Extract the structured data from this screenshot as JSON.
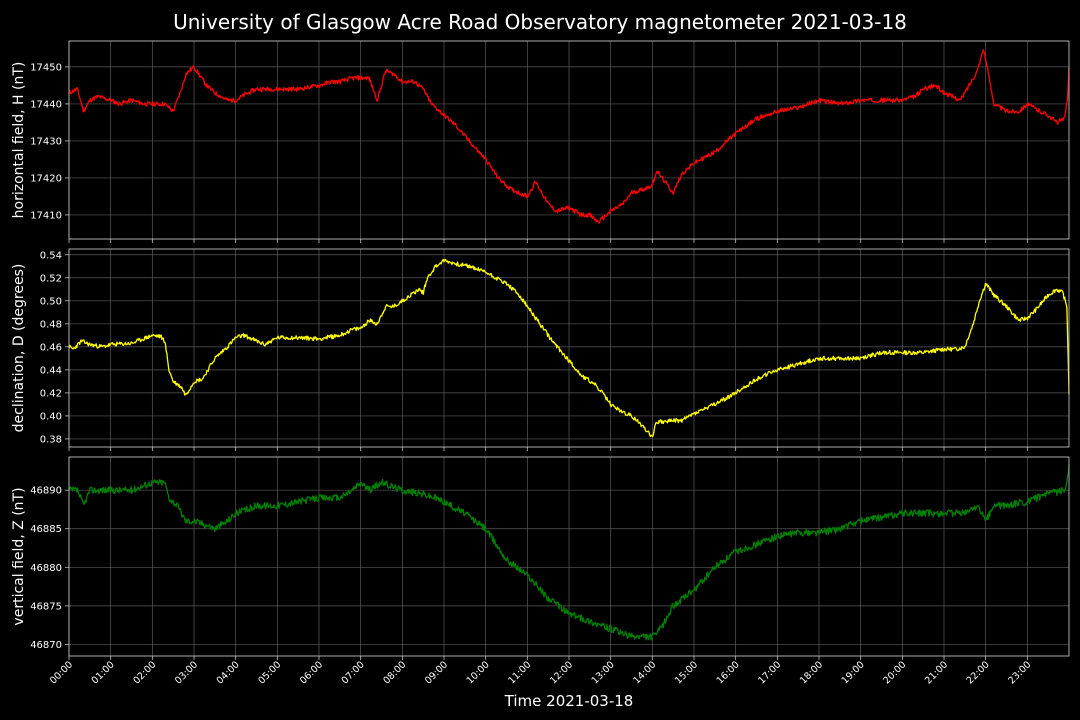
{
  "title": "University of Glasgow Acre Road Observatory magnetometer 2021-03-18",
  "xlabel": "Time 2021-03-18",
  "x_ticks": [
    "00:00",
    "01:00",
    "02:00",
    "03:00",
    "04:00",
    "05:00",
    "06:00",
    "07:00",
    "08:00",
    "09:00",
    "10:00",
    "11:00",
    "12:00",
    "13:00",
    "14:00",
    "15:00",
    "16:00",
    "17:00",
    "18:00",
    "19:00",
    "20:00",
    "21:00",
    "22:00",
    "23:00"
  ],
  "colors": {
    "background": "#000000",
    "grid": "#5a5a5a",
    "axis": "#bfbfbf",
    "text": "#ffffff"
  },
  "chart_data": [
    {
      "type": "line",
      "ylabel": "horizontal field, H (nT)",
      "color": "#ff0000",
      "xlim": [
        0,
        24
      ],
      "ylim": [
        17403.5,
        17457
      ],
      "yticks": [
        17410,
        17420,
        17430,
        17440,
        17450
      ],
      "noise": 0.6,
      "x": [
        0,
        0.2,
        0.35,
        0.5,
        0.7,
        1,
        1.2,
        1.5,
        1.8,
        2,
        2.3,
        2.5,
        2.7,
        2.8,
        3,
        3.3,
        3.5,
        3.8,
        4,
        4.3,
        4.5,
        5,
        5.5,
        6,
        6.3,
        6.5,
        6.8,
        7,
        7.2,
        7.4,
        7.6,
        7.8,
        8,
        8.3,
        8.5,
        8.7,
        9,
        9.3,
        9.6,
        10,
        10.3,
        10.6,
        11,
        11.2,
        11.5,
        11.7,
        12,
        12.3,
        12.5,
        12.7,
        13,
        13.3,
        13.5,
        13.8,
        14,
        14.1,
        14.3,
        14.5,
        14.7,
        15,
        15.5,
        16,
        16.5,
        17,
        17.5,
        18,
        18.5,
        19,
        19.5,
        20,
        20.3,
        20.5,
        20.8,
        21,
        21.2,
        21.4,
        21.6,
        21.8,
        21.95,
        22,
        22.2,
        22.5,
        22.8,
        23,
        23.3,
        23.5,
        23.7,
        23.9,
        23.97,
        24
      ],
      "y": [
        17443,
        17444,
        17438,
        17441,
        17442,
        17441,
        17440,
        17441,
        17440,
        17440,
        17440,
        17438,
        17444,
        17448,
        17450,
        17445,
        17443,
        17441,
        17441,
        17443,
        17444,
        17444,
        17444,
        17445,
        17446,
        17446,
        17447,
        17447,
        17447,
        17441,
        17449,
        17448,
        17446,
        17446,
        17444,
        17440,
        17437,
        17434,
        17430,
        17425,
        17420,
        17417,
        17415,
        17419,
        17413,
        17411,
        17412,
        17410,
        17410,
        17408,
        17411,
        17413,
        17416,
        17417,
        17418,
        17422,
        17419,
        17416,
        17421,
        17424,
        17427,
        17432,
        17436,
        17438,
        17439,
        17441,
        17440,
        17441,
        17441,
        17441,
        17442,
        17444,
        17445,
        17443,
        17442,
        17441,
        17445,
        17449,
        17455,
        17452,
        17440,
        17438,
        17438,
        17440,
        17438,
        17437,
        17435,
        17436,
        17442,
        17450
      ]
    },
    {
      "type": "line",
      "ylabel": "declination, D (degrees)",
      "color": "#ffff00",
      "xlim": [
        0,
        24
      ],
      "ylim": [
        0.373,
        0.545
      ],
      "yticks": [
        0.38,
        0.4,
        0.42,
        0.44,
        0.46,
        0.48,
        0.5,
        0.52,
        0.54
      ],
      "noise": 0.0018,
      "x": [
        0,
        0.1,
        0.3,
        0.5,
        0.8,
        1,
        1.5,
        2,
        2.2,
        2.3,
        2.4,
        2.5,
        2.7,
        2.8,
        3,
        3.2,
        3.5,
        3.8,
        4,
        4.2,
        4.5,
        4.7,
        5,
        5.5,
        6,
        6.5,
        6.8,
        7,
        7.2,
        7.4,
        7.6,
        7.8,
        8,
        8.2,
        8.4,
        8.5,
        8.6,
        8.8,
        9,
        9.3,
        9.6,
        10,
        10.5,
        10.8,
        11,
        11.3,
        11.6,
        12,
        12.3,
        12.6,
        12.8,
        13,
        13.3,
        13.5,
        13.8,
        14,
        14.1,
        14.3,
        14.5,
        14.7,
        15,
        15.5,
        16,
        16.5,
        17,
        17.5,
        18,
        18.5,
        19,
        19.5,
        20,
        20.5,
        21,
        21.3,
        21.5,
        21.7,
        21.85,
        22,
        22.2,
        22.5,
        22.8,
        23,
        23.2,
        23.5,
        23.7,
        23.85,
        23.95,
        24
      ],
      "y": [
        0.46,
        0.458,
        0.465,
        0.462,
        0.46,
        0.462,
        0.463,
        0.47,
        0.469,
        0.465,
        0.44,
        0.43,
        0.425,
        0.418,
        0.43,
        0.432,
        0.45,
        0.46,
        0.468,
        0.47,
        0.465,
        0.462,
        0.468,
        0.468,
        0.467,
        0.47,
        0.475,
        0.476,
        0.483,
        0.48,
        0.495,
        0.495,
        0.5,
        0.505,
        0.51,
        0.507,
        0.52,
        0.53,
        0.535,
        0.532,
        0.53,
        0.525,
        0.515,
        0.505,
        0.495,
        0.48,
        0.465,
        0.448,
        0.435,
        0.428,
        0.42,
        0.41,
        0.403,
        0.4,
        0.39,
        0.382,
        0.395,
        0.395,
        0.396,
        0.396,
        0.402,
        0.41,
        0.42,
        0.432,
        0.44,
        0.445,
        0.45,
        0.45,
        0.45,
        0.455,
        0.455,
        0.455,
        0.458,
        0.458,
        0.46,
        0.48,
        0.5,
        0.515,
        0.505,
        0.495,
        0.483,
        0.485,
        0.492,
        0.505,
        0.51,
        0.507,
        0.495,
        0.42
      ]
    },
    {
      "type": "line",
      "ylabel": "vertical field, Z (nT)",
      "color": "#008000",
      "xlim": [
        0,
        24
      ],
      "ylim": [
        46868.5,
        46894.3
      ],
      "yticks": [
        46870,
        46875,
        46880,
        46885,
        46890
      ],
      "noise": 0.45,
      "x": [
        0,
        0.2,
        0.35,
        0.5,
        0.8,
        1,
        1.2,
        1.5,
        2,
        2.3,
        2.4,
        2.6,
        2.8,
        3,
        3.3,
        3.5,
        3.8,
        4,
        4.3,
        4.5,
        5,
        5.5,
        6,
        6.5,
        6.8,
        7,
        7.2,
        7.5,
        8,
        8.5,
        8.8,
        9,
        9.5,
        10,
        10.5,
        11,
        11.5,
        12,
        12.5,
        13,
        13.5,
        13.8,
        14,
        14.2,
        14.5,
        15,
        15.5,
        16,
        16.5,
        17,
        17.5,
        18,
        18.5,
        19,
        19.5,
        20,
        20.5,
        21,
        21.5,
        21.8,
        22,
        22.2,
        22.5,
        23,
        23.5,
        23.9,
        24
      ],
      "y": [
        46890,
        46890,
        46888,
        46890,
        46890,
        46890,
        46890,
        46890,
        46891,
        46891,
        46889,
        46888,
        46886,
        46886,
        46885.5,
        46885,
        46886,
        46887,
        46887.5,
        46888,
        46888,
        46888.5,
        46889,
        46889,
        46890,
        46891,
        46890,
        46891,
        46890,
        46889.5,
        46889,
        46888.5,
        46887,
        46885,
        46881,
        46879,
        46876,
        46874,
        46873,
        46872,
        46871,
        46871,
        46871,
        46872,
        46875,
        46877,
        46880,
        46882,
        46883,
        46884,
        46884.5,
        46884.5,
        46885,
        46886,
        46886.5,
        46887,
        46887,
        46887,
        46887,
        46888,
        46886,
        46888,
        46888,
        46888.5,
        46889.5,
        46890,
        46893
      ]
    }
  ]
}
